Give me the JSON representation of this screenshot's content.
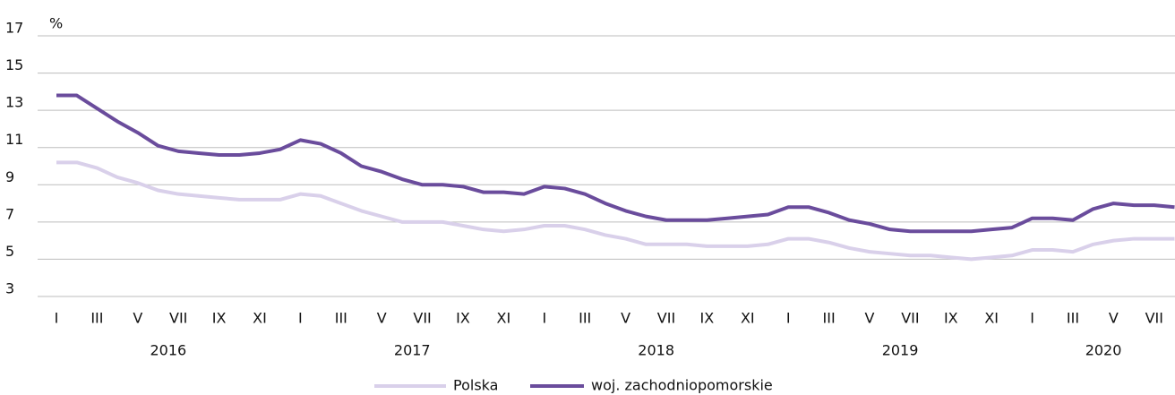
{
  "chart_data": {
    "type": "line",
    "y_unit": "%",
    "categories": [
      "I",
      null,
      "III",
      null,
      "V",
      null,
      "VII",
      null,
      "IX",
      null,
      "XI",
      null,
      "I",
      null,
      "III",
      null,
      "V",
      null,
      "VII",
      null,
      "IX",
      null,
      "XI",
      null,
      "I",
      null,
      "III",
      null,
      "V",
      null,
      "VII",
      null,
      "IX",
      null,
      "XI",
      null,
      "I",
      null,
      "III",
      null,
      "V",
      null,
      "VII",
      null,
      "IX",
      null,
      "XI",
      null,
      "I",
      null,
      "III",
      null,
      "V",
      null,
      "VII",
      null
    ],
    "years": [
      "2016",
      "2017",
      "2018",
      "2019",
      "2020"
    ],
    "series": [
      {
        "name": "Polska",
        "color": "#d9d0ea",
        "values": [
          10.2,
          10.2,
          9.9,
          9.4,
          9.1,
          8.7,
          8.5,
          8.4,
          8.3,
          8.2,
          8.2,
          8.2,
          8.5,
          8.4,
          8.0,
          7.6,
          7.3,
          7.0,
          7.0,
          7.0,
          6.8,
          6.6,
          6.5,
          6.6,
          6.8,
          6.8,
          6.6,
          6.3,
          6.1,
          5.8,
          5.8,
          5.8,
          5.7,
          5.7,
          5.7,
          5.8,
          6.1,
          6.1,
          5.9,
          5.6,
          5.4,
          5.3,
          5.2,
          5.2,
          5.1,
          5.0,
          5.1,
          5.2,
          5.5,
          5.5,
          5.4,
          5.8,
          6.0,
          6.1,
          6.1,
          6.1
        ]
      },
      {
        "name": "woj. zachodniopomorskie",
        "color": "#6a4c9c",
        "values": [
          13.8,
          13.8,
          13.1,
          12.4,
          11.8,
          11.1,
          10.8,
          10.7,
          10.6,
          10.6,
          10.7,
          10.9,
          11.4,
          11.2,
          10.7,
          10.0,
          9.7,
          9.3,
          9.0,
          9.0,
          8.9,
          8.6,
          8.6,
          8.5,
          8.9,
          8.8,
          8.5,
          8.0,
          7.6,
          7.3,
          7.1,
          7.1,
          7.1,
          7.2,
          7.3,
          7.4,
          7.8,
          7.8,
          7.5,
          7.1,
          6.9,
          6.6,
          6.5,
          6.5,
          6.5,
          6.5,
          6.6,
          6.7,
          7.2,
          7.2,
          7.1,
          7.7,
          8.0,
          7.9,
          7.9,
          7.8
        ]
      }
    ],
    "ylim": [
      3,
      17
    ],
    "yticks": [
      3,
      5,
      7,
      9,
      11,
      13,
      15,
      17
    ],
    "grid": true,
    "legend": "bottom"
  }
}
